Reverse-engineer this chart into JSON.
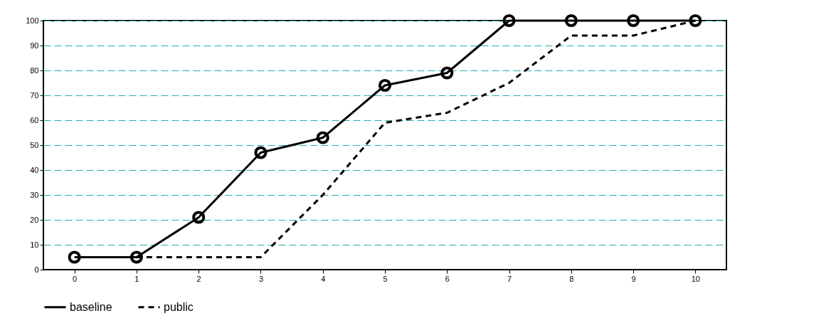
{
  "chart_data": {
    "type": "line",
    "categories": [
      "0",
      "1",
      "2",
      "3",
      "4",
      "5",
      "6",
      "7",
      "8",
      "9",
      "10"
    ],
    "series": [
      {
        "name": "baseline",
        "color": "#000000",
        "line_style": "solid",
        "marker": "circle",
        "values": [
          5,
          5,
          21,
          47,
          53,
          74,
          79,
          100,
          100,
          100,
          100
        ]
      },
      {
        "name": "public",
        "color": "#000000",
        "line_style": "dashed",
        "marker": "none",
        "values": [
          null,
          5,
          5,
          5,
          30,
          59,
          63,
          75,
          94,
          94,
          100
        ]
      }
    ],
    "ylim": [
      0,
      100
    ],
    "yticks": [
      0,
      10,
      20,
      30,
      40,
      50,
      60,
      70,
      80,
      90,
      100
    ],
    "grid": "y",
    "legend": "bottom"
  }
}
